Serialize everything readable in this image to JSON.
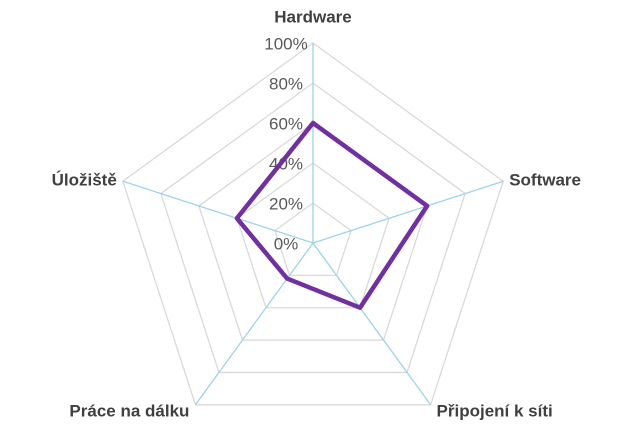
{
  "chart_data": {
    "type": "radar",
    "categories": [
      "Hardware",
      "Software",
      "Připojení k síti",
      "Práce na dálku",
      "Úložiště"
    ],
    "series": [
      {
        "color": "#7030a0",
        "values": [
          60,
          60,
          40,
          22,
          40
        ]
      }
    ],
    "ylim": [
      0,
      100
    ],
    "yticks": [
      {
        "value": 0,
        "label": "0%"
      },
      {
        "value": 20,
        "label": "20%"
      },
      {
        "value": 40,
        "label": "40%"
      },
      {
        "value": 60,
        "label": "60%"
      },
      {
        "value": 80,
        "label": "80%"
      },
      {
        "value": 100,
        "label": "100%"
      }
    ],
    "grid": true
  }
}
